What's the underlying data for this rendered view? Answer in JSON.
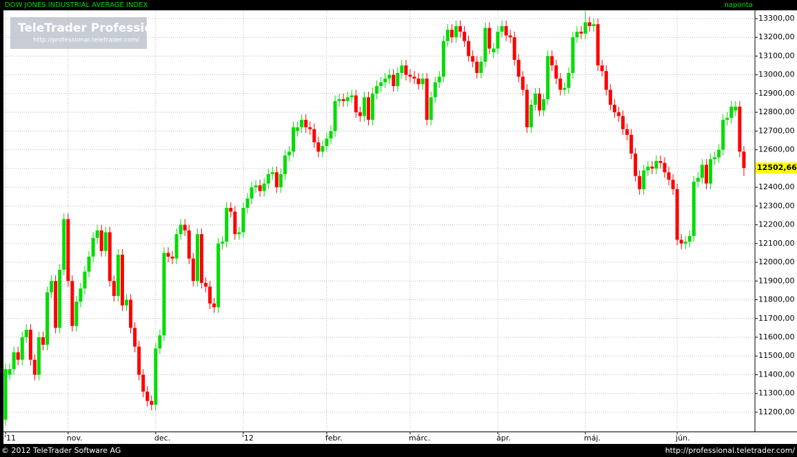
{
  "chart_data": {
    "type": "candlestick",
    "title": "DOW JONES INDUSTRIAL AVERAGE INDEX",
    "subtitle": "naponta",
    "watermark": "TeleTrader Professional",
    "watermark_url": "http://professional.teletrader.com/",
    "footer_left": "© 2012 TeleTrader Software AG",
    "footer_right": "http://professional.teletrader.com/",
    "up_color": "#00dd00",
    "down_color": "#ff0000",
    "grid": true,
    "last_value_label": "12502,66",
    "ylim": [
      11097,
      13344
    ],
    "yticks": [
      {
        "value": 11200,
        "label": "11200,00"
      },
      {
        "value": 11300,
        "label": "11300,00"
      },
      {
        "value": 11400,
        "label": "11400,00"
      },
      {
        "value": 11500,
        "label": "11500,00"
      },
      {
        "value": 11600,
        "label": "11600,00"
      },
      {
        "value": 11700,
        "label": "11700,00"
      },
      {
        "value": 11800,
        "label": "11800,00"
      },
      {
        "value": 11900,
        "label": "11900,00"
      },
      {
        "value": 12000,
        "label": "12000,00"
      },
      {
        "value": 12100,
        "label": "12100,00"
      },
      {
        "value": 12200,
        "label": "12200,00"
      },
      {
        "value": 12300,
        "label": "12300,00"
      },
      {
        "value": 12400,
        "label": "12400,00"
      },
      {
        "value": 12500,
        "label": "12500,00"
      },
      {
        "value": 12600,
        "label": "12600,00"
      },
      {
        "value": 12700,
        "label": "12700,00"
      },
      {
        "value": 12800,
        "label": "12800,00"
      },
      {
        "value": 12900,
        "label": "12900,00"
      },
      {
        "value": 13000,
        "label": "13000,00"
      },
      {
        "value": 13100,
        "label": "13100,00"
      },
      {
        "value": 13200,
        "label": "13200,00"
      },
      {
        "value": 13300,
        "label": "13300,00"
      }
    ],
    "xticks": [
      {
        "value": 0,
        "label": "'11"
      },
      {
        "value": 15,
        "label": "nov."
      },
      {
        "value": 36,
        "label": "dec."
      },
      {
        "value": 57,
        "label": "'12"
      },
      {
        "value": 77,
        "label": "febr."
      },
      {
        "value": 97,
        "label": "márc."
      },
      {
        "value": 118,
        "label": "ápr."
      },
      {
        "value": 139,
        "label": "máj."
      },
      {
        "value": 161,
        "label": "jún."
      }
    ],
    "open": [
      11160,
      11400,
      11430,
      11520,
      11480,
      11600,
      11640,
      11480,
      11400,
      11600,
      11560,
      11840,
      11900,
      11650,
      11960,
      12230,
      11900,
      11660,
      11790,
      11860,
      11950,
      12030,
      12130,
      12170,
      12060,
      12160,
      11900,
      11820,
      12040,
      11770,
      11800,
      11650,
      11550,
      11400,
      11310,
      11260,
      11240,
      11540,
      11610,
      12050,
      12030,
      12020,
      12150,
      12200,
      12170,
      12020,
      11900,
      12150,
      11890,
      11870,
      11780,
      11760,
      12100,
      12110,
      12290,
      12270,
      12150,
      12160,
      12290,
      12340,
      12400,
      12410,
      12380,
      12420,
      12470,
      12480,
      12400,
      12470,
      12570,
      12590,
      12700,
      12720,
      12760,
      12720,
      12710,
      12640,
      12590,
      12620,
      12660,
      12700,
      12860,
      12870,
      12860,
      12880,
      12890,
      12800,
      12780,
      12880,
      12760,
      12900,
      12940,
      12960,
      12980,
      13000,
      12940,
      13010,
      13050,
      13000,
      12990,
      12980,
      12950,
      12980,
      12760,
      12880,
      12960,
      12990,
      13180,
      13240,
      13200,
      13260,
      13230,
      13180,
      13100,
      13070,
      13010,
      13070,
      13250,
      13120,
      13140,
      13230,
      13260,
      13210,
      13200,
      13080,
      12990,
      12920,
      12720,
      12840,
      12900,
      12810,
      12870,
      13100,
      13050,
      12980,
      12920,
      12930,
      13010,
      13200,
      13230,
      13220,
      13280,
      13260,
      13270,
      13050,
      13020,
      12920,
      12840,
      12800,
      12780,
      12710,
      12680,
      12580,
      12460,
      12390,
      12490,
      12510,
      12500,
      12540,
      12530,
      12480,
      12440,
      12390,
      12120,
      12100,
      12110,
      12140,
      12430,
      12450,
      12520,
      12420,
      12550,
      12560,
      12600,
      12760,
      12770,
      12810,
      12830,
      12590
    ],
    "high": [
      11460,
      11460,
      11550,
      11550,
      11630,
      11670,
      11670,
      11510,
      11630,
      11630,
      11870,
      11930,
      11930,
      11990,
      12260,
      12260,
      11930,
      11820,
      11890,
      11980,
      12060,
      12160,
      12200,
      12200,
      12190,
      12190,
      11930,
      12070,
      12070,
      11830,
      11830,
      11680,
      11580,
      11430,
      11340,
      11290,
      11570,
      11640,
      12080,
      12080,
      12060,
      12180,
      12230,
      12230,
      12200,
      12050,
      12180,
      12180,
      11920,
      11900,
      11810,
      12130,
      12140,
      12320,
      12320,
      12300,
      12190,
      12320,
      12370,
      12430,
      12440,
      12440,
      12450,
      12500,
      12510,
      12510,
      12500,
      12600,
      12620,
      12750,
      12750,
      12790,
      12790,
      12750,
      12740,
      12670,
      12650,
      12690,
      12730,
      12890,
      12900,
      12900,
      12910,
      12920,
      12920,
      12830,
      12910,
      12910,
      12930,
      12970,
      12990,
      13010,
      13030,
      13030,
      13040,
      13080,
      13080,
      13030,
      13020,
      13010,
      13010,
      13010,
      12910,
      12990,
      13020,
      13210,
      13270,
      13270,
      13290,
      13290,
      13260,
      13210,
      13130,
      13100,
      13100,
      13280,
      13280,
      13170,
      13260,
      13290,
      13290,
      13240,
      13230,
      13110,
      13020,
      12950,
      12870,
      12930,
      12930,
      12900,
      13130,
      13130,
      13080,
      13010,
      12960,
      13040,
      13230,
      13260,
      13260,
      13340,
      13310,
      13300,
      13300,
      13080,
      13050,
      12950,
      12870,
      12830,
      12810,
      12740,
      12710,
      12610,
      12490,
      12520,
      12540,
      12540,
      12570,
      12570,
      12560,
      12510,
      12470,
      12420,
      12150,
      12140,
      12170,
      12460,
      12480,
      12550,
      12550,
      12580,
      12590,
      12630,
      12790,
      12800,
      12860,
      12860,
      12860,
      12620
    ],
    "low": [
      11130,
      11370,
      11400,
      11450,
      11450,
      11570,
      11450,
      11370,
      11370,
      11530,
      11530,
      11810,
      11620,
      11620,
      11930,
      11870,
      11630,
      11630,
      11760,
      11830,
      11920,
      12000,
      12100,
      12030,
      12030,
      11870,
      11790,
      11790,
      11740,
      11740,
      11620,
      11520,
      11370,
      11280,
      11230,
      11210,
      11210,
      11510,
      11580,
      12000,
      11990,
      11990,
      12120,
      12140,
      11990,
      11870,
      11870,
      11860,
      11840,
      11750,
      11730,
      11730,
      12070,
      12080,
      12240,
      12120,
      12120,
      12130,
      12260,
      12310,
      12370,
      12350,
      12350,
      12390,
      12440,
      12370,
      12370,
      12440,
      12540,
      12560,
      12670,
      12690,
      12690,
      12680,
      12610,
      12560,
      12560,
      12590,
      12630,
      12670,
      12830,
      12830,
      12830,
      12850,
      12770,
      12750,
      12750,
      12730,
      12730,
      12870,
      12910,
      12930,
      12950,
      12910,
      12910,
      12980,
      12970,
      12960,
      12950,
      12920,
      12920,
      12730,
      12730,
      12850,
      12930,
      12960,
      13150,
      13170,
      13170,
      13200,
      13150,
      13070,
      13040,
      12980,
      12980,
      13040,
      13110,
      13090,
      13110,
      13200,
      13180,
      13170,
      13050,
      12960,
      12890,
      12690,
      12690,
      12810,
      12780,
      12780,
      12840,
      13020,
      12950,
      12890,
      12890,
      12900,
      12980,
      13170,
      13190,
      13190,
      13230,
      13230,
      13020,
      12990,
      12890,
      12810,
      12770,
      12750,
      12680,
      12650,
      12550,
      12430,
      12360,
      12360,
      12460,
      12470,
      12470,
      12500,
      12450,
      12410,
      12360,
      12090,
      12070,
      12070,
      12080,
      12110,
      12400,
      12420,
      12390,
      12390,
      12520,
      12530,
      12570,
      12730,
      12740,
      12780,
      12560,
      12460
    ],
    "close": [
      11430,
      11430,
      11520,
      11480,
      11600,
      11640,
      11480,
      11400,
      11600,
      11560,
      11840,
      11900,
      11650,
      11960,
      12230,
      11900,
      11660,
      11790,
      11860,
      11950,
      12030,
      12130,
      12170,
      12060,
      12160,
      11900,
      11820,
      12040,
      11770,
      11800,
      11650,
      11550,
      11400,
      11310,
      11260,
      11240,
      11540,
      11610,
      12050,
      12030,
      12020,
      12150,
      12200,
      12170,
      12020,
      11900,
      12150,
      11890,
      11870,
      11780,
      11760,
      12100,
      12110,
      12290,
      12270,
      12150,
      12160,
      12290,
      12340,
      12400,
      12410,
      12380,
      12420,
      12470,
      12480,
      12400,
      12470,
      12570,
      12590,
      12720,
      12720,
      12760,
      12720,
      12710,
      12640,
      12590,
      12620,
      12660,
      12700,
      12860,
      12870,
      12860,
      12880,
      12890,
      12800,
      12780,
      12880,
      12760,
      12900,
      12940,
      12960,
      12980,
      13000,
      12940,
      13010,
      13050,
      13000,
      12990,
      12980,
      12950,
      12980,
      12760,
      12880,
      12960,
      12990,
      13180,
      13240,
      13200,
      13260,
      13230,
      13180,
      13100,
      13070,
      13010,
      13070,
      13250,
      13140,
      13140,
      13230,
      13260,
      13210,
      13200,
      13080,
      12990,
      12920,
      12720,
      12840,
      12900,
      12810,
      12870,
      13100,
      13050,
      12980,
      12920,
      12930,
      13010,
      13200,
      13230,
      13220,
      13280,
      13260,
      13270,
      13050,
      13020,
      12920,
      12840,
      12800,
      12780,
      12710,
      12680,
      12580,
      12460,
      12390,
      12490,
      12510,
      12500,
      12540,
      12530,
      12480,
      12440,
      12390,
      12120,
      12100,
      12110,
      12140,
      12430,
      12450,
      12520,
      12420,
      12550,
      12560,
      12600,
      12760,
      12770,
      12830,
      12830,
      12590,
      12502.66
    ]
  }
}
